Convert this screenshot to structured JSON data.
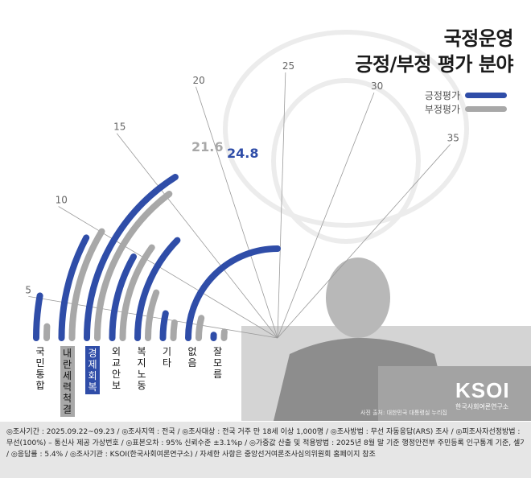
{
  "title": {
    "line1": "국정운영",
    "line2": "긍정/부정 평가 분야"
  },
  "legend": [
    {
      "label": "긍정평가",
      "color": "#2f4da8"
    },
    {
      "label": "부정평가",
      "color": "#a8a8a8"
    }
  ],
  "chart_data": {
    "type": "bar",
    "layout": "radial",
    "scale_ticks": [
      5,
      10,
      15,
      20,
      25,
      30,
      35
    ],
    "categories": [
      "국민통합",
      "내란세력척결",
      "경제회복",
      "외교안보",
      "복지노동",
      "기타",
      "없음",
      "잘모름"
    ],
    "highlight": {
      "내란세력척결": "부정평가",
      "경제회복": "긍정평가"
    },
    "series": [
      {
        "name": "긍정평가",
        "color": "#2f4da8",
        "values": [
          5.5,
          13.5,
          24.8,
          11.0,
          14.0,
          3.2,
          22.0,
          0.4
        ]
      },
      {
        "name": "부정평가",
        "color": "#a8a8a8",
        "values": [
          1.5,
          14.5,
          21.6,
          12.5,
          6.0,
          2.0,
          2.6,
          0.8
        ]
      }
    ],
    "data_labels": [
      "21.6",
      "24.8"
    ]
  },
  "footer": {
    "line1": "◎조사기간 : 2025.09.22~09.23 / ◎조사지역 : 전국 / ◎조사대상 : 전국 거주 만 18세 이상 1,000명 / ◎조사방법 : 무선 자동응답(ARS) 조사 / ◎피조사자선정방법 :",
    "line2": "무선(100%) – 통신사 제공 가상번호 / ◎표본오차 : 95% 신뢰수준 ±3.1%p / ◎가중값 산출 및 적용방법 : 2025년 8월 말 기준 행정안전부 주민등록 인구통계 기준, 셀가중",
    "line3": "/ ◎응답률 : 5.4% / ◎조사기관 : KSOI(한국사회여론연구소) / 자세한 사항은 중앙선거여론조사심의위원회 홈페이지 참조"
  },
  "logo": {
    "text": "KSOI",
    "subtitle": "한국사회여론연구소"
  },
  "photo_credit": "사진 출처: 대한민국 대통령실 누리집"
}
